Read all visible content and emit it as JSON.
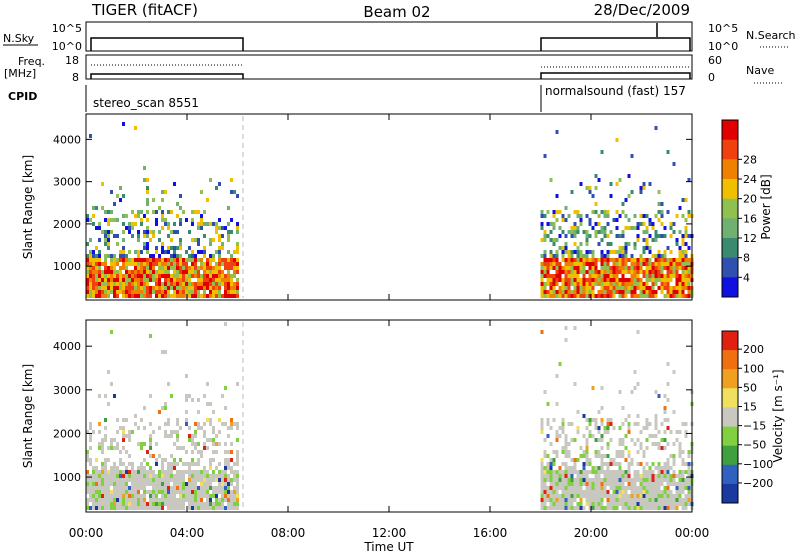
{
  "header": {
    "radar": "TIGER (fitACF)",
    "beam": "Beam 02",
    "date": "28/Dec/2009"
  },
  "top_panels": {
    "nsky_label": "N.Sky",
    "nsky_ticks": [
      "10^5",
      "10^0"
    ],
    "nsearch_label": "N.Search",
    "nsearch_ticks": [
      "10^5",
      "10^0"
    ],
    "freq_label_1": "Freq.",
    "freq_label_2": "[MHz]",
    "freq_ticks": [
      "18",
      "8"
    ],
    "nave_label": "Nave",
    "nave_ticks": [
      "60",
      "0"
    ],
    "cpid_label": "CPID",
    "cpid_left": "stereo_scan 8551",
    "cpid_right": "normalsound (fast) 157"
  },
  "chart_data": [
    {
      "type": "heatmap",
      "title": "",
      "xlabel": "",
      "ylabel": "Slant Range [km]",
      "yticks": [
        "1000",
        "2000",
        "3000",
        "4000"
      ],
      "ylim": [
        200,
        4600
      ],
      "xlim": [
        "00:00",
        "24:00"
      ],
      "colorbar": {
        "label": "Power [dB]",
        "ticks": [
          "4",
          "8",
          "12",
          "16",
          "20",
          "24",
          "28"
        ],
        "colors": [
          "#1010e0",
          "#3050b0",
          "#3a8a70",
          "#70b070",
          "#90c050",
          "#f0c000",
          "#f08000",
          "#f04010",
          "#e00000"
        ]
      },
      "segments": [
        {
          "start": "00:00",
          "end": "06:00"
        },
        {
          "start": "18:00",
          "end": "24:00"
        }
      ]
    },
    {
      "type": "heatmap",
      "title": "",
      "xlabel": "Time UT",
      "ylabel": "Slant Range [km]",
      "yticks": [
        "1000",
        "2000",
        "3000",
        "4000"
      ],
      "ylim": [
        200,
        4600
      ],
      "xticks": [
        "00:00",
        "04:00",
        "08:00",
        "12:00",
        "16:00",
        "20:00",
        "00:00"
      ],
      "colorbar": {
        "label": "Velocity [m s⁻¹]",
        "ticks": [
          "200",
          "100",
          "50",
          "15",
          "−15",
          "−50",
          "−100",
          "−200"
        ],
        "colors": [
          "#1a3aa0",
          "#3060c0",
          "#40a040",
          "#80d040",
          "#c8c8c0",
          "#f0e060",
          "#f0a020",
          "#f07010",
          "#e02010"
        ]
      },
      "segments": [
        {
          "start": "00:00",
          "end": "06:00"
        },
        {
          "start": "18:00",
          "end": "24:00"
        }
      ]
    }
  ]
}
